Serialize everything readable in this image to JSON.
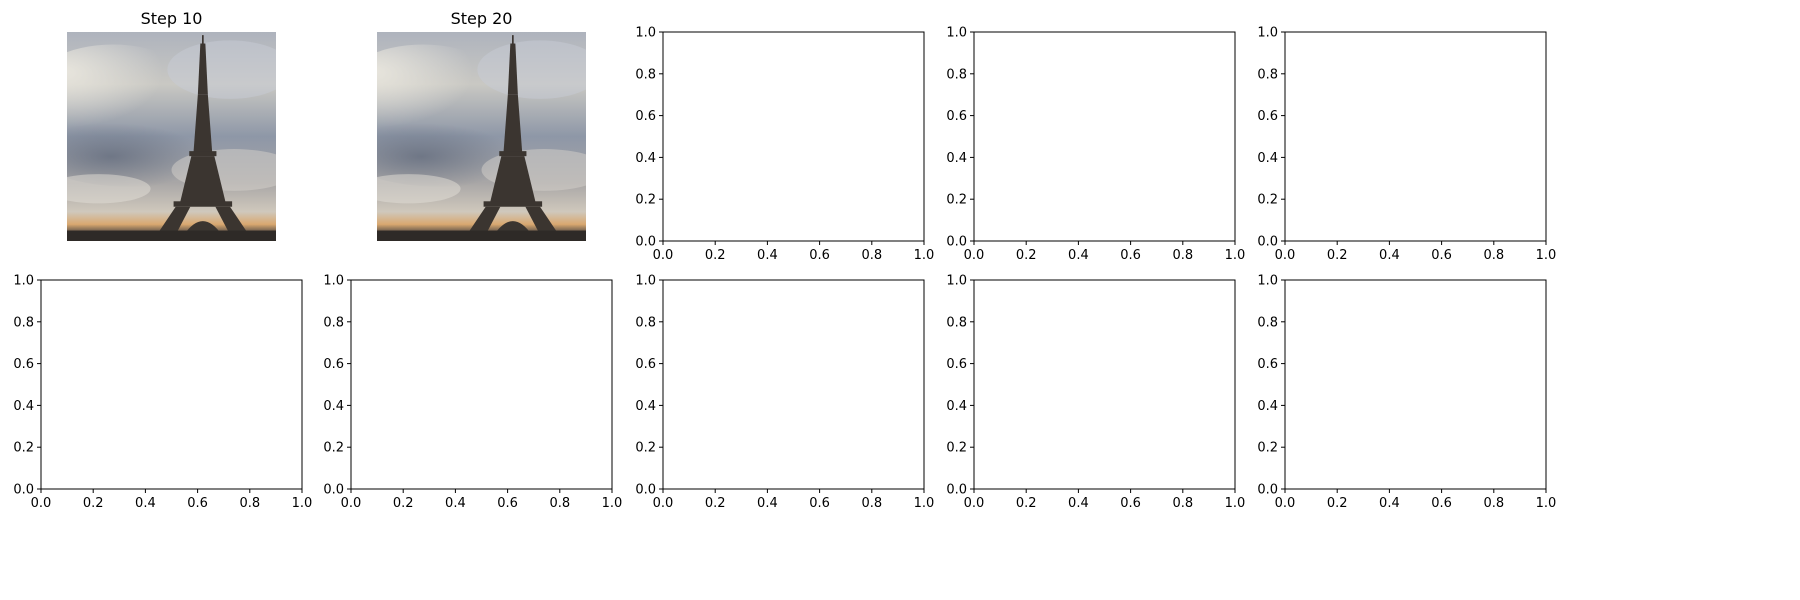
{
  "figure": {
    "background": "#ffffff"
  },
  "chart_data": [
    {
      "type": "image",
      "title": "Step 10",
      "image": "eiffel-tower-under-cloudy-sky"
    },
    {
      "type": "image",
      "title": "Step 20",
      "image": "eiffel-tower-under-cloudy-sky"
    },
    {
      "type": "empty-axes",
      "xlim": [
        0,
        1
      ],
      "ylim": [
        0,
        1
      ],
      "xticks": [
        "0.0",
        "0.2",
        "0.4",
        "0.6",
        "0.8",
        "1.0"
      ],
      "yticks": [
        "0.0",
        "0.2",
        "0.4",
        "0.6",
        "0.8",
        "1.0"
      ]
    },
    {
      "type": "empty-axes",
      "xlim": [
        0,
        1
      ],
      "ylim": [
        0,
        1
      ],
      "xticks": [
        "0.0",
        "0.2",
        "0.4",
        "0.6",
        "0.8",
        "1.0"
      ],
      "yticks": [
        "0.0",
        "0.2",
        "0.4",
        "0.6",
        "0.8",
        "1.0"
      ]
    },
    {
      "type": "empty-axes",
      "xlim": [
        0,
        1
      ],
      "ylim": [
        0,
        1
      ],
      "xticks": [
        "0.0",
        "0.2",
        "0.4",
        "0.6",
        "0.8",
        "1.0"
      ],
      "yticks": [
        "0.0",
        "0.2",
        "0.4",
        "0.6",
        "0.8",
        "1.0"
      ]
    },
    {
      "type": "empty-axes",
      "xlim": [
        0,
        1
      ],
      "ylim": [
        0,
        1
      ],
      "xticks": [
        "0.0",
        "0.2",
        "0.4",
        "0.6",
        "0.8",
        "1.0"
      ],
      "yticks": [
        "0.0",
        "0.2",
        "0.4",
        "0.6",
        "0.8",
        "1.0"
      ]
    },
    {
      "type": "empty-axes",
      "xlim": [
        0,
        1
      ],
      "ylim": [
        0,
        1
      ],
      "xticks": [
        "0.0",
        "0.2",
        "0.4",
        "0.6",
        "0.8",
        "1.0"
      ],
      "yticks": [
        "0.0",
        "0.2",
        "0.4",
        "0.6",
        "0.8",
        "1.0"
      ]
    },
    {
      "type": "empty-axes",
      "xlim": [
        0,
        1
      ],
      "ylim": [
        0,
        1
      ],
      "xticks": [
        "0.0",
        "0.2",
        "0.4",
        "0.6",
        "0.8",
        "1.0"
      ],
      "yticks": [
        "0.0",
        "0.2",
        "0.4",
        "0.6",
        "0.8",
        "1.0"
      ]
    },
    {
      "type": "empty-axes",
      "xlim": [
        0,
        1
      ],
      "ylim": [
        0,
        1
      ],
      "xticks": [
        "0.0",
        "0.2",
        "0.4",
        "0.6",
        "0.8",
        "1.0"
      ],
      "yticks": [
        "0.0",
        "0.2",
        "0.4",
        "0.6",
        "0.8",
        "1.0"
      ]
    },
    {
      "type": "empty-axes",
      "xlim": [
        0,
        1
      ],
      "ylim": [
        0,
        1
      ],
      "xticks": [
        "0.0",
        "0.2",
        "0.4",
        "0.6",
        "0.8",
        "1.0"
      ],
      "yticks": [
        "0.0",
        "0.2",
        "0.4",
        "0.6",
        "0.8",
        "1.0"
      ]
    }
  ]
}
